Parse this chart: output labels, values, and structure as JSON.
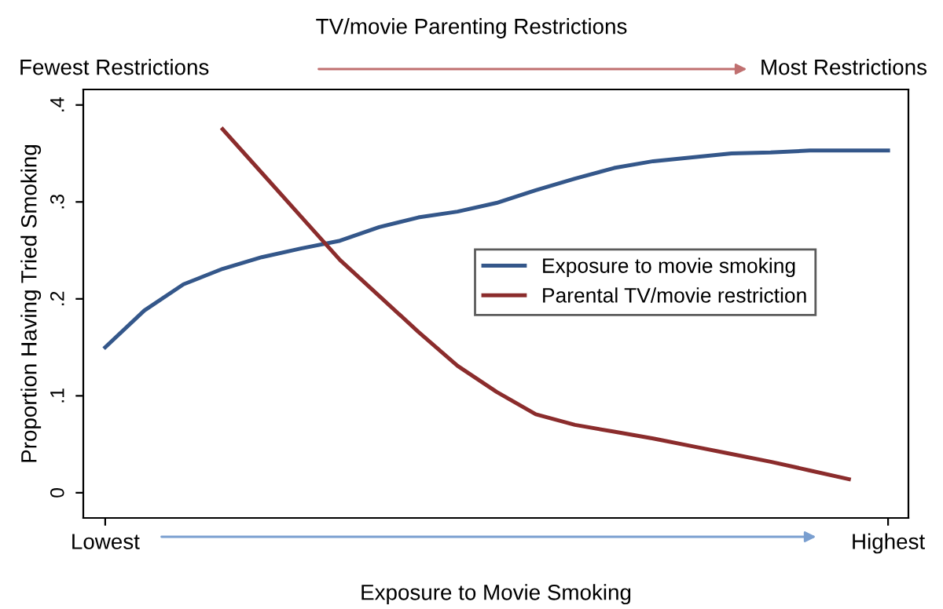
{
  "chart_data": {
    "type": "line",
    "title": "TV/movie Parenting Restrictions",
    "xlabel": "Exposure to Movie Smoking",
    "ylabel": "Proportion Having Tried Smoking",
    "annotations": [
      "Fewest Restrictions",
      "Most Restrictions"
    ],
    "categories": [
      "Lowest",
      null,
      null,
      null,
      null,
      null,
      null,
      null,
      null,
      null,
      null,
      null,
      null,
      null,
      null,
      null,
      null,
      null,
      null,
      null,
      "Highest"
    ],
    "series": [
      {
        "name": "Exposure to movie smoking",
        "color": "#34578a",
        "values": [
          0.15,
          0.188,
          0.215,
          0.231,
          0.243,
          0.252,
          0.26,
          0.274,
          0.284,
          0.29,
          0.299,
          0.312,
          0.324,
          0.335,
          0.342,
          0.346,
          0.35,
          0.351,
          0.353,
          0.353,
          0.353
        ]
      },
      {
        "name": "Parental TV/movie restriction",
        "color": "#8b2c2c",
        "values": [
          null,
          null,
          null,
          0.375,
          0.33,
          0.285,
          0.24,
          0.203,
          0.166,
          0.131,
          0.104,
          0.081,
          0.07,
          0.063,
          0.056,
          0.048,
          0.04,
          0.032,
          0.023,
          0.014,
          null
        ]
      }
    ],
    "ylim": [
      -0.026,
      0.416
    ],
    "yticks": [
      {
        "value": 0,
        "label": "0"
      },
      {
        "value": 0.1,
        "label": ".1"
      },
      {
        "value": 0.2,
        "label": ".2"
      },
      {
        "value": 0.3,
        "label": ".3"
      },
      {
        "value": 0.4,
        "label": ".4"
      }
    ],
    "grid": false,
    "legend": "right",
    "marker": "none",
    "line_style": "solid"
  }
}
